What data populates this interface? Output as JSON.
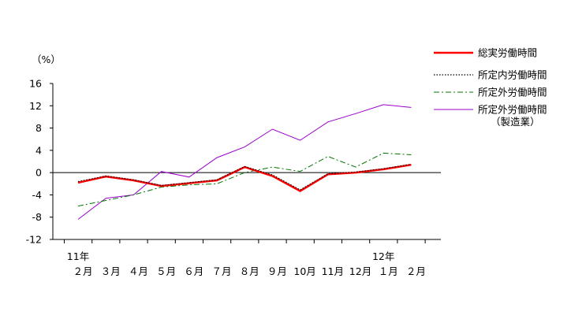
{
  "chart_data": {
    "type": "line",
    "unit_label": "（%）",
    "ylim": [
      -12,
      16
    ],
    "yticks": [
      -12,
      -8,
      -4,
      0,
      4,
      8,
      12,
      16
    ],
    "year_labels": [
      {
        "index": 0,
        "text": "11年"
      },
      {
        "index": 11,
        "text": "12年"
      }
    ],
    "categories": [
      "２月",
      "３月",
      "４月",
      "５月",
      "６月",
      "７月",
      "８月",
      "９月",
      "10月",
      "11月",
      "12月",
      "１月",
      "２月"
    ],
    "series": [
      {
        "name": "総実労働時間",
        "style": "solid",
        "color": "#ff0000",
        "values": [
          -1.8,
          -0.7,
          -1.4,
          -2.4,
          -1.9,
          -1.4,
          1.0,
          -0.6,
          -3.3,
          -0.3,
          0.0,
          0.6,
          1.4
        ]
      },
      {
        "name": "所定内労働時間",
        "style": "dotted",
        "color": "#000000",
        "values": [
          -1.6,
          -0.6,
          -1.3,
          -2.3,
          -1.8,
          -1.3,
          1.1,
          -0.4,
          -3.1,
          -0.2,
          0.1,
          0.7,
          1.5
        ]
      },
      {
        "name": "所定外労働時間",
        "style": "dashdot",
        "color": "#007700",
        "values": [
          -6.0,
          -5.0,
          -4.0,
          -2.6,
          -2.2,
          -2.0,
          0.0,
          1.0,
          0.2,
          2.9,
          1.0,
          3.5,
          3.2
        ]
      },
      {
        "name": "所定外労働時間",
        "name_line2": "（製造業）",
        "style": "solid",
        "color": "#9900cc",
        "values": [
          -8.4,
          -4.6,
          -4.0,
          0.2,
          -0.8,
          2.7,
          4.6,
          7.8,
          5.8,
          9.1,
          10.6,
          12.2,
          11.7
        ]
      }
    ]
  }
}
